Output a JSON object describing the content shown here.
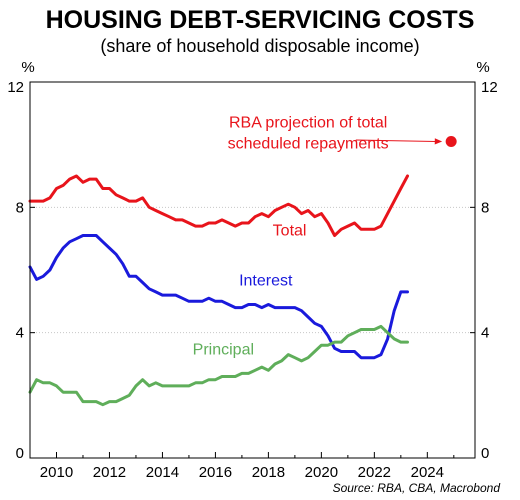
{
  "chart_data": {
    "type": "line",
    "title": "HOUSING DEBT-SERVICING COSTS",
    "subtitle": "(share of household disposable income)",
    "ylabel_left": "%",
    "ylabel_right": "%",
    "ylim": [
      0,
      12
    ],
    "xlim": [
      2009.0,
      2025.8
    ],
    "yticks": [
      0,
      4,
      8,
      12
    ],
    "xticks": [
      2010,
      2012,
      2014,
      2016,
      2018,
      2020,
      2022,
      2024
    ],
    "grid": true,
    "source": "Source: RBA, CBA, Macrobond",
    "colors": {
      "total": "#e8141b",
      "interest": "#1a1adc",
      "principal": "#5fae5a",
      "projection": "#e8141b"
    },
    "series": [
      {
        "name": "Total",
        "x": [
          2009.0,
          2009.25,
          2009.5,
          2009.75,
          2010.0,
          2010.25,
          2010.5,
          2010.75,
          2011.0,
          2011.25,
          2011.5,
          2011.75,
          2012.0,
          2012.25,
          2012.5,
          2012.75,
          2013.0,
          2013.25,
          2013.5,
          2013.75,
          2014.0,
          2014.25,
          2014.5,
          2014.75,
          2015.0,
          2015.25,
          2015.5,
          2015.75,
          2016.0,
          2016.25,
          2016.5,
          2016.75,
          2017.0,
          2017.25,
          2017.5,
          2017.75,
          2018.0,
          2018.25,
          2018.5,
          2018.75,
          2019.0,
          2019.25,
          2019.5,
          2019.75,
          2020.0,
          2020.25,
          2020.5,
          2020.75,
          2021.0,
          2021.25,
          2021.5,
          2021.75,
          2022.0,
          2022.25,
          2022.5,
          2022.75,
          2023.0,
          2023.25
        ],
        "values": [
          8.2,
          8.2,
          8.2,
          8.3,
          8.6,
          8.7,
          8.9,
          9.0,
          8.8,
          8.9,
          8.9,
          8.6,
          8.6,
          8.4,
          8.3,
          8.2,
          8.2,
          8.3,
          8.0,
          7.9,
          7.8,
          7.7,
          7.6,
          7.6,
          7.5,
          7.4,
          7.4,
          7.5,
          7.5,
          7.6,
          7.5,
          7.4,
          7.5,
          7.5,
          7.7,
          7.8,
          7.7,
          7.9,
          8.0,
          8.1,
          8.0,
          7.8,
          7.9,
          7.7,
          7.8,
          7.5,
          7.1,
          7.3,
          7.4,
          7.5,
          7.3,
          7.3,
          7.3,
          7.4,
          7.8,
          8.2,
          8.6,
          9.0
        ]
      },
      {
        "name": "Interest",
        "x": [
          2009.0,
          2009.25,
          2009.5,
          2009.75,
          2010.0,
          2010.25,
          2010.5,
          2010.75,
          2011.0,
          2011.25,
          2011.5,
          2011.75,
          2012.0,
          2012.25,
          2012.5,
          2012.75,
          2013.0,
          2013.25,
          2013.5,
          2013.75,
          2014.0,
          2014.25,
          2014.5,
          2014.75,
          2015.0,
          2015.25,
          2015.5,
          2015.75,
          2016.0,
          2016.25,
          2016.5,
          2016.75,
          2017.0,
          2017.25,
          2017.5,
          2017.75,
          2018.0,
          2018.25,
          2018.5,
          2018.75,
          2019.0,
          2019.25,
          2019.5,
          2019.75,
          2020.0,
          2020.25,
          2020.5,
          2020.75,
          2021.0,
          2021.25,
          2021.5,
          2021.75,
          2022.0,
          2022.25,
          2022.5,
          2022.75,
          2023.0,
          2023.25
        ],
        "values": [
          6.1,
          5.7,
          5.8,
          6.0,
          6.4,
          6.7,
          6.9,
          7.0,
          7.1,
          7.1,
          7.1,
          6.9,
          6.7,
          6.5,
          6.2,
          5.8,
          5.8,
          5.6,
          5.4,
          5.3,
          5.2,
          5.2,
          5.2,
          5.1,
          5.0,
          5.0,
          5.0,
          5.1,
          5.0,
          5.0,
          4.9,
          4.8,
          4.8,
          4.9,
          4.9,
          4.8,
          4.9,
          4.8,
          4.8,
          4.8,
          4.8,
          4.7,
          4.5,
          4.3,
          4.2,
          3.9,
          3.5,
          3.4,
          3.4,
          3.4,
          3.2,
          3.2,
          3.2,
          3.3,
          3.8,
          4.7,
          5.3,
          5.3
        ]
      },
      {
        "name": "Principal",
        "x": [
          2009.0,
          2009.25,
          2009.5,
          2009.75,
          2010.0,
          2010.25,
          2010.5,
          2010.75,
          2011.0,
          2011.25,
          2011.5,
          2011.75,
          2012.0,
          2012.25,
          2012.5,
          2012.75,
          2013.0,
          2013.25,
          2013.5,
          2013.75,
          2014.0,
          2014.25,
          2014.5,
          2014.75,
          2015.0,
          2015.25,
          2015.5,
          2015.75,
          2016.0,
          2016.25,
          2016.5,
          2016.75,
          2017.0,
          2017.25,
          2017.5,
          2017.75,
          2018.0,
          2018.25,
          2018.5,
          2018.75,
          2019.0,
          2019.25,
          2019.5,
          2019.75,
          2020.0,
          2020.25,
          2020.5,
          2020.75,
          2021.0,
          2021.25,
          2021.5,
          2021.75,
          2022.0,
          2022.25,
          2022.5,
          2022.75,
          2023.0,
          2023.25
        ],
        "values": [
          2.1,
          2.5,
          2.4,
          2.4,
          2.3,
          2.1,
          2.1,
          2.1,
          1.8,
          1.8,
          1.8,
          1.7,
          1.8,
          1.8,
          1.9,
          2.0,
          2.3,
          2.5,
          2.3,
          2.4,
          2.3,
          2.3,
          2.3,
          2.3,
          2.3,
          2.4,
          2.4,
          2.5,
          2.5,
          2.6,
          2.6,
          2.6,
          2.7,
          2.7,
          2.8,
          2.9,
          2.8,
          3.0,
          3.1,
          3.3,
          3.2,
          3.1,
          3.2,
          3.4,
          3.6,
          3.6,
          3.7,
          3.7,
          3.9,
          4.0,
          4.1,
          4.1,
          4.1,
          4.2,
          4.0,
          3.8,
          3.7,
          3.7
        ]
      }
    ],
    "series_labels": [
      {
        "series": "Total",
        "text": "Total",
        "x": 2018.8,
        "y": 7.1
      },
      {
        "series": "Interest",
        "text": "Interest",
        "x": 2017.9,
        "y": 5.5
      },
      {
        "series": "Principal",
        "text": "Principal",
        "x": 2016.3,
        "y": 3.3
      }
    ],
    "projection": {
      "label_lines": [
        "RBA projection of total",
        "scheduled repayments"
      ],
      "x": 2024.9,
      "value": 10.1,
      "label_anchor": {
        "x": 2019.5,
        "y": 10.55
      },
      "arrow_from": {
        "x": 2021.3,
        "y": 10.15
      }
    }
  }
}
